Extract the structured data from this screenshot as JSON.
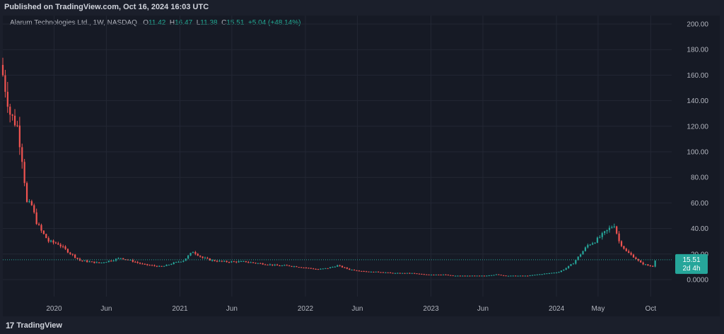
{
  "header": {
    "published": "Published on TradingView.com, Oct 16, 2024 16:03 UTC"
  },
  "footer": {
    "brand": "TradingView",
    "brand_mark": "17"
  },
  "legend": {
    "symbol": "Alarum Technologies Ltd., 1W, NASDAQ",
    "o_label": "O",
    "o_value": "11.42",
    "h_label": "H",
    "h_value": "16.47",
    "l_label": "L",
    "l_value": "11.38",
    "c_label": "C",
    "c_value": "15.51",
    "change": "+5.04 (+48.14%)"
  },
  "price_tag": {
    "price": "15.51",
    "countdown": "2d 4h"
  },
  "colors": {
    "up": "#26a69a",
    "down": "#ef5350",
    "bg": "#161a25",
    "grid": "#232734",
    "axis_text": "#b2b5be",
    "tag": "#26a69a"
  },
  "chart_data": {
    "type": "candlestick",
    "title": "",
    "interval": "1W",
    "ylim": [
      -15,
      210
    ],
    "y_ticks": [
      "200.00",
      "180.00",
      "160.00",
      "140.00",
      "120.00",
      "100.00",
      "80.00",
      "60.00",
      "40.00",
      "20.00",
      "0.0000"
    ],
    "x_ticks": [
      {
        "label": "2020",
        "date": "2020-01-01"
      },
      {
        "label": "Jun",
        "date": "2020-06-01"
      },
      {
        "label": "2021",
        "date": "2021-01-01"
      },
      {
        "label": "Jun",
        "date": "2021-06-01"
      },
      {
        "label": "2022",
        "date": "2022-01-01"
      },
      {
        "label": "Jun",
        "date": "2022-06-01"
      },
      {
        "label": "2023",
        "date": "2023-01-01"
      },
      {
        "label": "Jun",
        "date": "2023-06-01"
      },
      {
        "label": "2024",
        "date": "2024-01-01"
      },
      {
        "label": "May",
        "date": "2024-05-01"
      },
      {
        "label": "Oct",
        "date": "2024-10-01"
      }
    ],
    "x_range": [
      "2019-08-05",
      "2024-12-01"
    ],
    "last_price": 15.51,
    "series_points": [
      [
        "2019-08-05",
        160
      ],
      [
        "2019-08-26",
        130
      ],
      [
        "2019-09-16",
        120
      ],
      [
        "2019-09-30",
        95
      ],
      [
        "2019-10-14",
        60
      ],
      [
        "2019-10-28",
        58
      ],
      [
        "2019-11-11",
        45
      ],
      [
        "2019-11-25",
        38
      ],
      [
        "2019-12-16",
        30
      ],
      [
        "2020-01-13",
        28
      ],
      [
        "2020-02-10",
        22
      ],
      [
        "2020-03-16",
        15
      ],
      [
        "2020-04-13",
        14
      ],
      [
        "2020-05-11",
        13
      ],
      [
        "2020-06-15",
        15
      ],
      [
        "2020-07-13",
        17
      ],
      [
        "2020-08-10",
        15
      ],
      [
        "2020-09-14",
        12
      ],
      [
        "2020-10-12",
        11
      ],
      [
        "2020-11-09",
        10
      ],
      [
        "2020-12-14",
        13
      ],
      [
        "2021-01-11",
        15
      ],
      [
        "2021-02-08",
        22
      ],
      [
        "2021-03-08",
        17
      ],
      [
        "2021-04-05",
        15
      ],
      [
        "2021-05-10",
        14
      ],
      [
        "2021-06-07",
        14
      ],
      [
        "2021-07-12",
        14
      ],
      [
        "2021-08-09",
        13
      ],
      [
        "2021-09-13",
        12
      ],
      [
        "2021-10-11",
        11
      ],
      [
        "2021-11-08",
        11
      ],
      [
        "2021-12-13",
        10
      ],
      [
        "2022-01-10",
        9
      ],
      [
        "2022-02-07",
        8
      ],
      [
        "2022-03-07",
        9
      ],
      [
        "2022-04-04",
        11
      ],
      [
        "2022-05-09",
        8
      ],
      [
        "2022-06-06",
        7
      ],
      [
        "2022-07-11",
        6
      ],
      [
        "2022-08-08",
        6
      ],
      [
        "2022-09-12",
        5
      ],
      [
        "2022-10-10",
        5
      ],
      [
        "2022-11-07",
        5
      ],
      [
        "2022-12-12",
        4
      ],
      [
        "2023-01-09",
        4
      ],
      [
        "2023-02-06",
        4
      ],
      [
        "2023-03-06",
        3
      ],
      [
        "2023-04-03",
        3
      ],
      [
        "2023-05-08",
        3
      ],
      [
        "2023-06-05",
        3
      ],
      [
        "2023-07-10",
        4
      ],
      [
        "2023-08-07",
        3
      ],
      [
        "2023-09-11",
        3
      ],
      [
        "2023-10-09",
        3
      ],
      [
        "2023-11-06",
        4
      ],
      [
        "2023-12-11",
        5
      ],
      [
        "2024-01-08",
        6
      ],
      [
        "2024-01-29",
        9
      ],
      [
        "2024-02-19",
        13
      ],
      [
        "2024-03-11",
        20
      ],
      [
        "2024-04-01",
        27
      ],
      [
        "2024-04-22",
        30
      ],
      [
        "2024-05-13",
        35
      ],
      [
        "2024-06-03",
        40
      ],
      [
        "2024-06-17",
        43
      ],
      [
        "2024-07-01",
        30
      ],
      [
        "2024-07-22",
        22
      ],
      [
        "2024-08-12",
        18
      ],
      [
        "2024-09-02",
        13
      ],
      [
        "2024-09-23",
        11
      ],
      [
        "2024-10-07",
        10.47
      ],
      [
        "2024-10-14",
        15.51
      ]
    ]
  }
}
